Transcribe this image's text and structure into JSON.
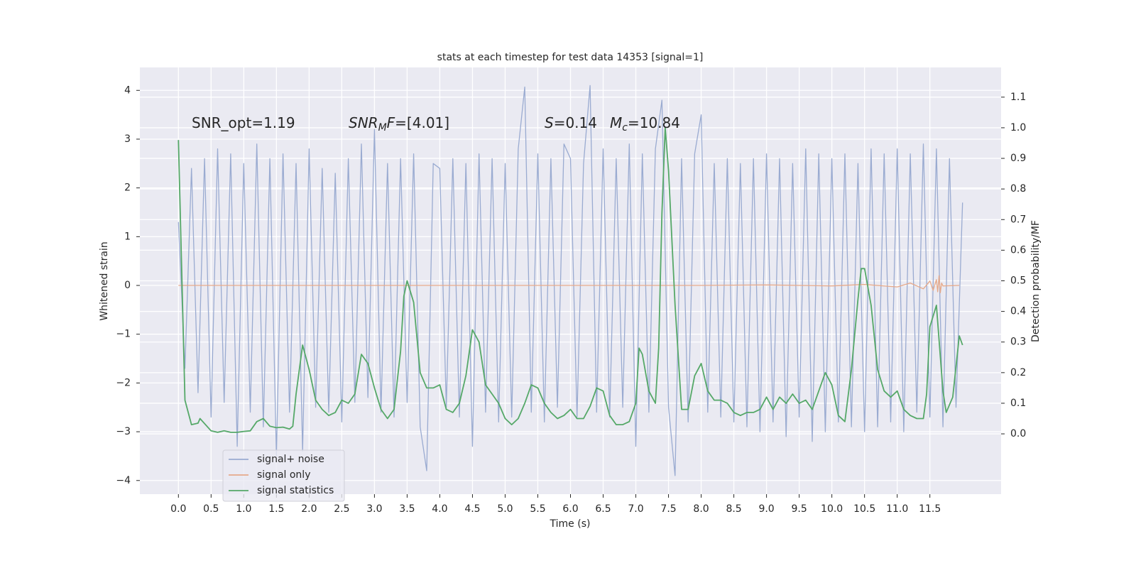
{
  "chart_data": {
    "type": "line",
    "title": "stats at each timestep for test data 14353 [signal=1]",
    "xlabel": "Time (s)",
    "ylabel": "Whitened strain",
    "y2label": "Detection probability/MF",
    "annotations": [
      [
        {
          "text": "SNR_opt=1.19"
        }
      ],
      [
        {
          "text": "SNR",
          "style": "italic"
        },
        {
          "text": "M",
          "style": "sub"
        },
        {
          "text": "F",
          "style": "italic"
        },
        {
          "text": "=[4.01]"
        }
      ],
      [
        {
          "text": "S",
          "style": "italic"
        },
        {
          "text": "=0.14"
        }
      ],
      [
        {
          "text": "M",
          "style": "italic"
        },
        {
          "text": "c",
          "style": "sub"
        },
        {
          "text": "=10.84"
        }
      ]
    ],
    "xlim": [
      -0.59,
      12.59
    ],
    "ylim": [
      -4.28,
      4.47
    ],
    "y2lim": [
      -0.197,
      1.197
    ],
    "xticks": [
      {
        "value": 0,
        "label": "0.0"
      },
      {
        "value": 0.5,
        "label": "0.5"
      },
      {
        "value": 1,
        "label": "1.0"
      },
      {
        "value": 1.5,
        "label": "1.5"
      },
      {
        "value": 2,
        "label": "2.0"
      },
      {
        "value": 2.5,
        "label": "2.5"
      },
      {
        "value": 3,
        "label": "3.0"
      },
      {
        "value": 3.5,
        "label": "3.5"
      },
      {
        "value": 4,
        "label": "4.0"
      },
      {
        "value": 4.5,
        "label": "4.5"
      },
      {
        "value": 5,
        "label": "5.0"
      },
      {
        "value": 5.5,
        "label": "5.5"
      },
      {
        "value": 6,
        "label": "6.0"
      },
      {
        "value": 6.5,
        "label": "6.5"
      },
      {
        "value": 7,
        "label": "7.0"
      },
      {
        "value": 7.5,
        "label": "7.5"
      },
      {
        "value": 8,
        "label": "8.0"
      },
      {
        "value": 8.5,
        "label": "8.5"
      },
      {
        "value": 9,
        "label": "9.0"
      },
      {
        "value": 9.5,
        "label": "9.5"
      },
      {
        "value": 10,
        "label": "10.0"
      },
      {
        "value": 10.5,
        "label": "10.5"
      },
      {
        "value": 11,
        "label": "11.0"
      },
      {
        "value": 11.5,
        "label": "11.5"
      }
    ],
    "yticks": [
      {
        "value": -4,
        "label": "−4"
      },
      {
        "value": -3,
        "label": "−3"
      },
      {
        "value": -2,
        "label": "−2"
      },
      {
        "value": -1,
        "label": "−1"
      },
      0,
      1,
      2,
      3,
      4
    ],
    "y2ticks": [
      {
        "value": 0,
        "label": "0.0"
      },
      {
        "value": 0.1,
        "label": "0.1"
      },
      {
        "value": 0.2,
        "label": "0.2"
      },
      {
        "value": 0.3,
        "label": "0.3"
      },
      {
        "value": 0.4,
        "label": "0.4"
      },
      {
        "value": 0.5,
        "label": "0.5"
      },
      {
        "value": 0.6,
        "label": "0.6"
      },
      {
        "value": 0.7,
        "label": "0.7"
      },
      {
        "value": 0.8,
        "label": "0.8"
      },
      {
        "value": 0.9,
        "label": "0.9"
      },
      {
        "value": 1,
        "label": "1.0"
      },
      {
        "value": 1.1,
        "label": "1.1"
      }
    ],
    "grid": true,
    "legend": "lower left",
    "series": [
      {
        "name": "signal+ noise",
        "color": "#9aabd1",
        "axis": "y",
        "x": [
          0,
          0.1,
          0.2,
          0.3,
          0.4,
          0.5,
          0.6,
          0.7,
          0.8,
          0.9,
          1,
          1.1,
          1.2,
          1.3,
          1.4,
          1.5,
          1.6,
          1.7,
          1.8,
          1.9,
          2,
          2.1,
          2.2,
          2.3,
          2.4,
          2.5,
          2.6,
          2.7,
          2.8,
          2.9,
          3,
          3.1,
          3.2,
          3.3,
          3.4,
          3.5,
          3.6,
          3.7,
          3.8,
          3.9,
          4,
          4.1,
          4.2,
          4.3,
          4.4,
          4.5,
          4.6,
          4.7,
          4.8,
          4.9,
          5,
          5.1,
          5.2,
          5.3,
          5.4,
          5.5,
          5.6,
          5.7,
          5.8,
          5.9,
          6,
          6.1,
          6.2,
          6.3,
          6.4,
          6.5,
          6.6,
          6.7,
          6.8,
          6.9,
          7,
          7.1,
          7.2,
          7.3,
          7.4,
          7.5,
          7.6,
          7.7,
          7.8,
          7.9,
          8,
          8.1,
          8.2,
          8.3,
          8.4,
          8.5,
          8.6,
          8.7,
          8.8,
          8.9,
          9,
          9.1,
          9.2,
          9.3,
          9.4,
          9.5,
          9.6,
          9.7,
          9.8,
          9.9,
          10,
          10.1,
          10.2,
          10.3,
          10.4,
          10.5,
          10.6,
          10.7,
          10.8,
          10.9,
          11,
          11.1,
          11.2,
          11.3,
          11.4,
          11.5,
          11.6,
          11.7,
          11.8,
          11.9,
          12
        ],
        "values": [
          1.3,
          -1.7,
          2.4,
          -2.2,
          2.6,
          -2.7,
          2.8,
          -2.4,
          2.7,
          -3.3,
          2.5,
          -2.6,
          2.9,
          -2.9,
          2.6,
          -3.5,
          2.7,
          -2.6,
          2.5,
          -3.4,
          2.8,
          -2.5,
          2.4,
          -2.6,
          2.3,
          -2.8,
          2.6,
          -2.4,
          2.9,
          -2.3,
          3.2,
          -2.6,
          2.5,
          -2.7,
          2.6,
          -2.4,
          2.7,
          -2.9,
          -3.8,
          2.5,
          2.4,
          -2.5,
          2.6,
          -2.7,
          2.5,
          -3.3,
          2.7,
          -2.6,
          2.6,
          -2.8,
          2.5,
          -2.7,
          2.8,
          4.07,
          -2.6,
          2.7,
          -2.8,
          2.6,
          -2.5,
          2.9,
          2.6,
          -2.7,
          2.5,
          4.1,
          -2.6,
          2.8,
          -2.7,
          2.6,
          -2.5,
          2.9,
          -3.3,
          2.7,
          -2.6,
          2.8,
          3.8,
          -2.5,
          -3.9,
          2.6,
          -2.8,
          2.7,
          3.5,
          -2.6,
          2.5,
          -2.7,
          2.6,
          -2.8,
          2.5,
          -2.9,
          2.6,
          -3.0,
          2.7,
          -2.8,
          2.6,
          -3.1,
          2.5,
          -2.7,
          2.8,
          -3.2,
          2.7,
          -3.0,
          2.6,
          -2.8,
          2.7,
          -2.9,
          2.5,
          -3.0,
          2.8,
          -2.9,
          2.7,
          -2.8,
          2.8,
          -3.0,
          2.7,
          -2.6,
          2.9,
          -2.7,
          2.8,
          -2.9,
          2.6,
          -2.5,
          1.7
        ]
      },
      {
        "name": "signal only",
        "color": "#e6a98a",
        "axis": "y",
        "x": [
          0,
          2,
          4,
          6,
          8,
          9,
          10,
          10.5,
          11,
          11.2,
          11.4,
          11.5,
          11.55,
          11.6,
          11.62,
          11.64,
          11.66,
          11.68,
          11.7,
          11.95
        ],
        "values": [
          0,
          0,
          0,
          0,
          0,
          0.01,
          -0.01,
          0.02,
          -0.03,
          0.05,
          -0.07,
          0.09,
          -0.1,
          0.12,
          -0.13,
          0.2,
          -0.15,
          0.05,
          -0.01,
          0
        ]
      },
      {
        "name": "signal statistics",
        "color": "#55a868",
        "axis": "y2",
        "x": [
          0,
          0.1,
          0.2,
          0.3,
          0.33,
          0.5,
          0.6,
          0.7,
          0.8,
          0.9,
          1,
          1.1,
          1.2,
          1.3,
          1.4,
          1.5,
          1.6,
          1.7,
          1.75,
          1.8,
          1.9,
          2,
          2.1,
          2.2,
          2.3,
          2.4,
          2.5,
          2.6,
          2.7,
          2.8,
          2.9,
          3,
          3.1,
          3.2,
          3.3,
          3.4,
          3.45,
          3.5,
          3.6,
          3.7,
          3.8,
          3.9,
          4,
          4.1,
          4.2,
          4.3,
          4.4,
          4.5,
          4.6,
          4.7,
          4.8,
          4.9,
          5,
          5.1,
          5.2,
          5.3,
          5.4,
          5.5,
          5.6,
          5.7,
          5.8,
          5.9,
          6,
          6.1,
          6.2,
          6.3,
          6.4,
          6.5,
          6.6,
          6.7,
          6.8,
          6.9,
          7,
          7.05,
          7.1,
          7.2,
          7.3,
          7.35,
          7.4,
          7.45,
          7.5,
          7.6,
          7.7,
          7.8,
          7.9,
          8,
          8.1,
          8.2,
          8.3,
          8.4,
          8.5,
          8.6,
          8.7,
          8.8,
          8.9,
          9,
          9.1,
          9.2,
          9.3,
          9.4,
          9.5,
          9.6,
          9.7,
          9.8,
          9.9,
          10,
          10.1,
          10.2,
          10.3,
          10.4,
          10.45,
          10.5,
          10.6,
          10.7,
          10.8,
          10.9,
          11,
          11.1,
          11.2,
          11.3,
          11.4,
          11.45,
          11.5,
          11.6,
          11.7,
          11.75,
          11.85,
          11.95,
          12
        ],
        "values": [
          0.96,
          0.11,
          0.03,
          0.035,
          0.05,
          0.01,
          0.005,
          0.01,
          0.005,
          0.005,
          0.008,
          0.01,
          0.04,
          0.05,
          0.025,
          0.02,
          0.022,
          0.016,
          0.025,
          0.13,
          0.29,
          0.21,
          0.11,
          0.08,
          0.06,
          0.07,
          0.11,
          0.1,
          0.13,
          0.26,
          0.23,
          0.15,
          0.08,
          0.05,
          0.08,
          0.27,
          0.45,
          0.5,
          0.43,
          0.2,
          0.15,
          0.15,
          0.16,
          0.08,
          0.07,
          0.1,
          0.19,
          0.34,
          0.3,
          0.16,
          0.13,
          0.1,
          0.05,
          0.03,
          0.05,
          0.1,
          0.16,
          0.15,
          0.1,
          0.07,
          0.05,
          0.06,
          0.08,
          0.05,
          0.05,
          0.09,
          0.15,
          0.14,
          0.06,
          0.03,
          0.03,
          0.04,
          0.1,
          0.28,
          0.26,
          0.14,
          0.1,
          0.28,
          0.72,
          1.0,
          0.86,
          0.42,
          0.08,
          0.08,
          0.19,
          0.23,
          0.14,
          0.11,
          0.11,
          0.1,
          0.07,
          0.06,
          0.07,
          0.07,
          0.08,
          0.12,
          0.08,
          0.12,
          0.1,
          0.13,
          0.1,
          0.11,
          0.08,
          0.14,
          0.2,
          0.16,
          0.06,
          0.04,
          0.21,
          0.44,
          0.54,
          0.54,
          0.42,
          0.21,
          0.14,
          0.12,
          0.14,
          0.08,
          0.06,
          0.05,
          0.05,
          0.13,
          0.35,
          0.42,
          0.14,
          0.07,
          0.12,
          0.32,
          0.29
        ]
      }
    ]
  }
}
